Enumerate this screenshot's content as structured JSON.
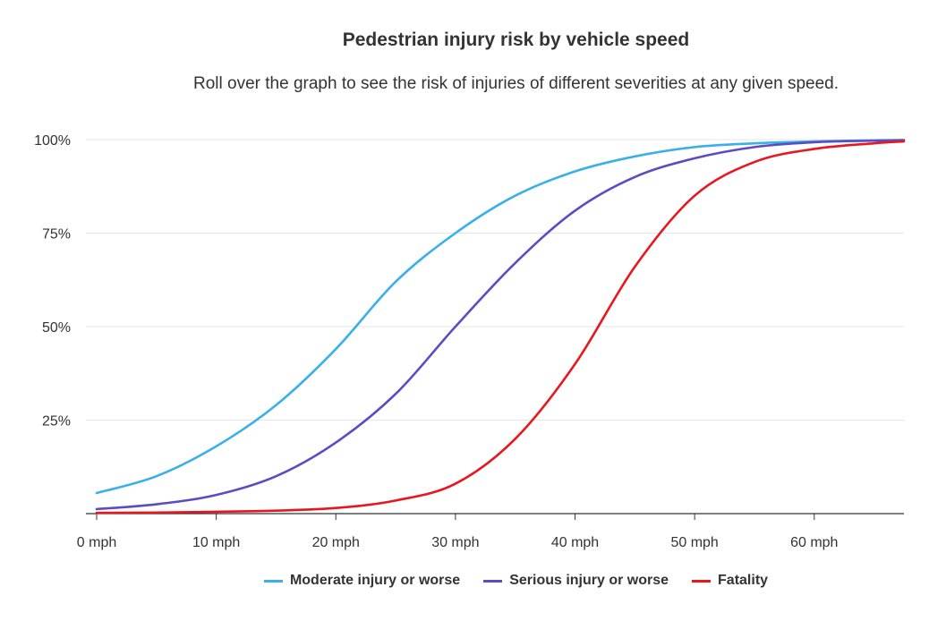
{
  "chart_data": {
    "type": "line",
    "title": "Pedestrian injury risk by vehicle speed",
    "subtitle": "Roll over the graph to see the risk of injuries of different severities at any given speed.",
    "xlabel": "",
    "ylabel": "",
    "xlim": [
      0,
      67.5
    ],
    "ylim": [
      0,
      100
    ],
    "x_ticks": [
      0,
      10,
      20,
      30,
      40,
      50,
      60
    ],
    "x_tick_labels": [
      "0 mph",
      "10 mph",
      "20 mph",
      "30 mph",
      "40 mph",
      "50 mph",
      "60 mph"
    ],
    "y_ticks": [
      25,
      50,
      75,
      100
    ],
    "y_tick_labels": [
      "25%",
      "50%",
      "75%",
      "100%"
    ],
    "grid": "horizontal",
    "legend_position": "bottom-center",
    "x": [
      0,
      5,
      10,
      15,
      20,
      25,
      30,
      35,
      40,
      45,
      50,
      55,
      60,
      65,
      67.5
    ],
    "series": [
      {
        "name": "Moderate injury or worse",
        "color": "#3ab0ea",
        "values": [
          5.5,
          10,
          18,
          29,
          44,
          62,
          75,
          85,
          91.5,
          95.5,
          98,
          99,
          99.5,
          99.8,
          99.9
        ]
      },
      {
        "name": "Serious injury or worse",
        "color": "#5b4bc4",
        "values": [
          1.2,
          2.5,
          5,
          10,
          19,
          32,
          50,
          67,
          81,
          90,
          95,
          98,
          99.3,
          99.7,
          99.8
        ]
      },
      {
        "name": "Fatality",
        "color": "#e8171e",
        "values": [
          0.2,
          0.3,
          0.5,
          0.8,
          1.5,
          3.5,
          8,
          20,
          40,
          66,
          85,
          94,
          97.5,
          99,
          99.5
        ]
      }
    ]
  }
}
